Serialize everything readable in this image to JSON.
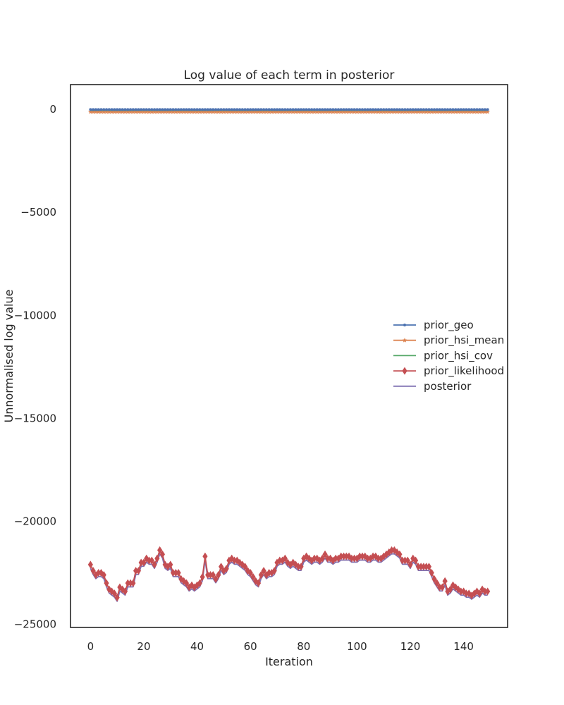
{
  "chart_data": {
    "type": "line",
    "title": "Log value of each term in posterior",
    "xlabel": "Iteration",
    "ylabel": "Unnormalised log value",
    "xlim": [
      -7.5,
      156.5
    ],
    "ylim": [
      -25150,
      1200
    ],
    "x_ticks": [
      0,
      20,
      40,
      60,
      80,
      100,
      120,
      140
    ],
    "y_ticks": [
      0,
      -5000,
      -10000,
      -15000,
      -20000,
      -25000
    ],
    "x_tick_labels": [
      "0",
      "20",
      "40",
      "60",
      "80",
      "100",
      "120",
      "140"
    ],
    "y_tick_labels": [
      "0",
      "−5000",
      "−10000",
      "−15000",
      "−20000",
      "−25000"
    ],
    "grid": false,
    "legend_position": "center-right",
    "x_start": 0,
    "x_end": 149,
    "series": [
      {
        "name": "prior_geo",
        "color": "#4C72B0",
        "marker": "dot",
        "constant": -10
      },
      {
        "name": "prior_hsi_mean",
        "color": "#DD8452",
        "marker": "star",
        "constant": -120
      },
      {
        "name": "prior_hsi_cov",
        "color": "#55A868",
        "marker": "none",
        "constant": -50
      },
      {
        "name": "prior_likelihood",
        "color": "#C44E52",
        "marker": "diamond",
        "x": [
          0,
          1,
          2,
          3,
          4,
          5,
          6,
          7,
          8,
          9,
          10,
          11,
          12,
          13,
          14,
          15,
          16,
          17,
          18,
          19,
          20,
          21,
          22,
          23,
          24,
          25,
          26,
          27,
          28,
          29,
          30,
          31,
          32,
          33,
          34,
          35,
          36,
          37,
          38,
          39,
          40,
          41,
          42,
          43,
          44,
          45,
          46,
          47,
          48,
          49,
          50,
          51,
          52,
          53,
          54,
          55,
          56,
          57,
          58,
          59,
          60,
          61,
          62,
          63,
          64,
          65,
          66,
          67,
          68,
          69,
          70,
          71,
          72,
          73,
          74,
          75,
          76,
          77,
          78,
          79,
          80,
          81,
          82,
          83,
          84,
          85,
          86,
          87,
          88,
          89,
          90,
          91,
          92,
          93,
          94,
          95,
          96,
          97,
          98,
          99,
          100,
          101,
          102,
          103,
          104,
          105,
          106,
          107,
          108,
          109,
          110,
          111,
          112,
          113,
          114,
          115,
          116,
          117,
          118,
          119,
          120,
          121,
          122,
          123,
          124,
          125,
          126,
          127,
          128,
          129,
          130,
          131,
          132,
          133,
          134,
          135,
          136,
          137,
          138,
          139,
          140,
          141,
          142,
          143,
          144,
          145,
          146,
          147,
          148,
          149
        ],
        "values": [
          -22100,
          -22400,
          -22600,
          -22500,
          -22500,
          -22600,
          -23000,
          -23300,
          -23400,
          -23500,
          -23700,
          -23200,
          -23300,
          -23400,
          -23000,
          -23000,
          -23000,
          -22400,
          -22400,
          -22000,
          -22000,
          -21800,
          -21900,
          -21900,
          -22100,
          -21800,
          -21400,
          -21600,
          -22100,
          -22200,
          -22100,
          -22500,
          -22500,
          -22500,
          -22800,
          -22900,
          -23000,
          -23200,
          -23100,
          -23200,
          -23100,
          -23000,
          -22700,
          -21700,
          -22600,
          -22600,
          -22600,
          -22800,
          -22600,
          -22200,
          -22400,
          -22300,
          -21900,
          -21800,
          -21900,
          -21900,
          -22000,
          -22100,
          -22200,
          -22400,
          -22500,
          -22700,
          -22900,
          -23000,
          -22600,
          -22400,
          -22600,
          -22500,
          -22500,
          -22400,
          -22000,
          -21900,
          -21900,
          -21800,
          -22000,
          -22100,
          -22000,
          -22100,
          -22200,
          -22200,
          -21800,
          -21700,
          -21800,
          -21900,
          -21800,
          -21800,
          -21900,
          -21800,
          -21600,
          -21800,
          -21800,
          -21900,
          -21800,
          -21800,
          -21700,
          -21700,
          -21700,
          -21700,
          -21800,
          -21800,
          -21800,
          -21700,
          -21700,
          -21700,
          -21800,
          -21800,
          -21700,
          -21700,
          -21800,
          -21800,
          -21700,
          -21600,
          -21500,
          -21400,
          -21400,
          -21500,
          -21600,
          -21900,
          -21900,
          -21900,
          -22100,
          -21800,
          -21900,
          -22200,
          -22200,
          -22200,
          -22200,
          -22200,
          -22500,
          -22800,
          -23000,
          -23200,
          -23200,
          -22900,
          -23400,
          -23300,
          -23100,
          -23200,
          -23300,
          -23400,
          -23400,
          -23500,
          -23500,
          -23600,
          -23500,
          -23400,
          -23500,
          -23300,
          -23400,
          -23400
        ]
      },
      {
        "name": "posterior",
        "color": "#8172B2",
        "marker": "none",
        "offset_from": "prior_likelihood",
        "offset": -180
      }
    ]
  }
}
